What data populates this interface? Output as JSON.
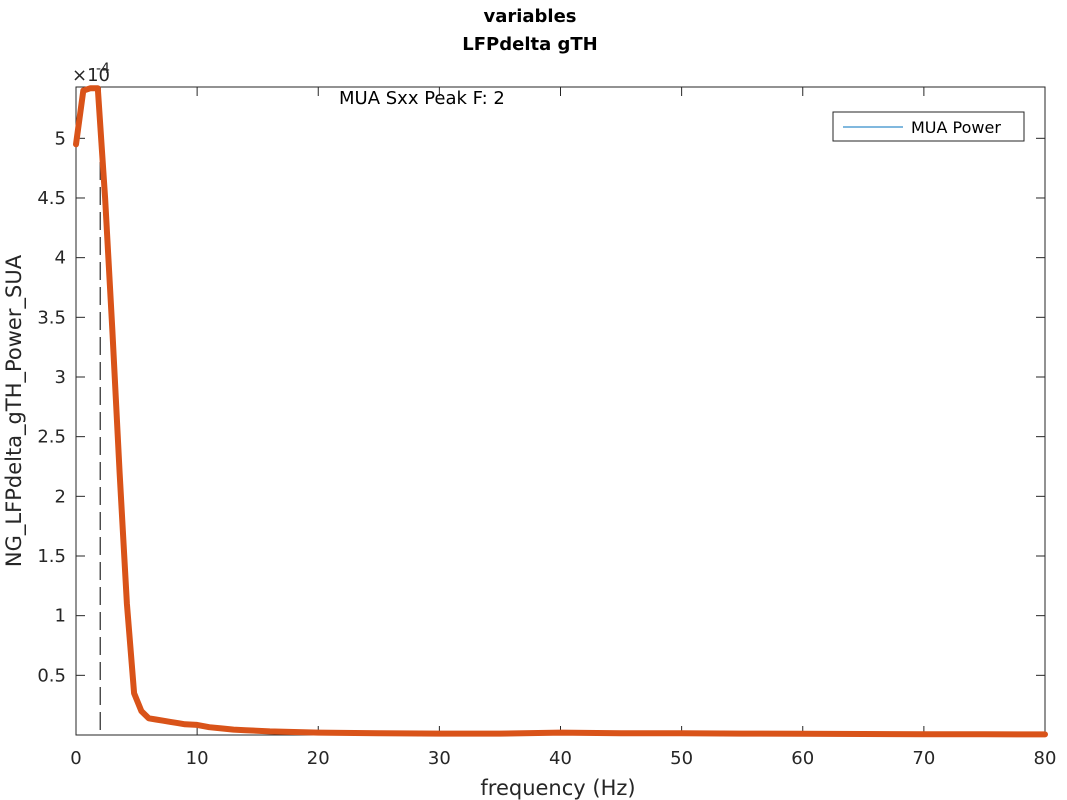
{
  "chart_data": {
    "type": "line",
    "title": "variables",
    "subtitle": "LFPdelta gTH",
    "xlabel": "frequency (Hz)",
    "ylabel": "NG_LFPdelta_gTH_Power_SUA",
    "xlim": [
      0,
      80
    ],
    "ylim": [
      0,
      0.000543
    ],
    "x_ticks": [
      0,
      10,
      20,
      30,
      40,
      50,
      60,
      70,
      80
    ],
    "y_ticks": [
      0.5,
      1,
      1.5,
      2,
      2.5,
      3,
      3.5,
      4,
      4.5,
      5
    ],
    "y_tick_labels": [
      "0.5",
      "1",
      "1.5",
      "2",
      "2.5",
      "3",
      "3.5",
      "4",
      "4.5",
      "5"
    ],
    "y_exponent_base": "×10",
    "y_exponent_power": "-4",
    "grid": false,
    "legend": {
      "position": "top-right",
      "entries": [
        "MUA Power"
      ]
    },
    "annotation": {
      "text": "MUA Sxx Peak F: 2",
      "peak_x": 2
    },
    "series": [
      {
        "name": "MUA Power",
        "color": "#D95319",
        "x": [
          0,
          0.6,
          1.2,
          1.8,
          2.4,
          3,
          3.6,
          4.2,
          4.8,
          5.4,
          6,
          6.6,
          7.2,
          7.8,
          8.4,
          9,
          10,
          11,
          12,
          13,
          14,
          16,
          18,
          20,
          25,
          30,
          35,
          40,
          45,
          50,
          55,
          60,
          65,
          70,
          75,
          80
        ],
        "y": [
          0.000495,
          0.00054,
          0.000542,
          0.000542,
          0.00045,
          0.00034,
          0.00022,
          0.00011,
          3.5e-05,
          2e-05,
          1.4e-05,
          1.3e-05,
          1.2e-05,
          1.1e-05,
          1e-05,
          9e-06,
          8.5e-06,
          6.5e-06,
          5.5e-06,
          4.5e-06,
          4e-06,
          3e-06,
          2.5e-06,
          2e-06,
          1.5e-06,
          1.2e-06,
          1.2e-06,
          2e-06,
          1.5e-06,
          1.5e-06,
          1.2e-06,
          1e-06,
          8e-07,
          7e-07,
          6e-07,
          5e-07
        ]
      }
    ]
  }
}
